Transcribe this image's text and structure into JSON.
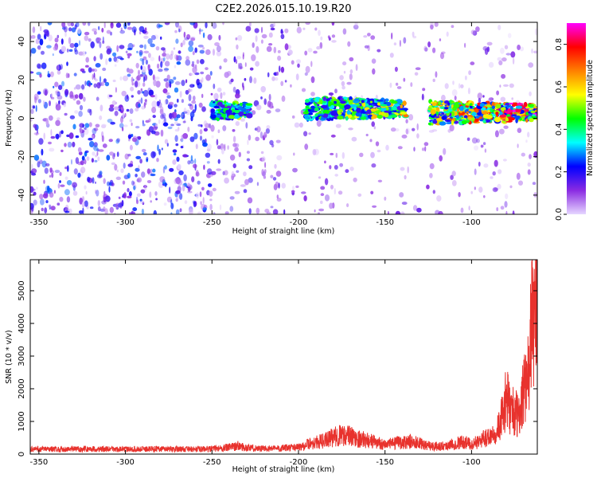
{
  "figure": {
    "title": "C2E2.2026.015.10.19.R20"
  },
  "chart_data": [
    {
      "type": "heatmap",
      "xlabel": "Height of straight line (km)",
      "ylabel": "Frequency (Hz)",
      "xlim": [
        -355,
        -62
      ],
      "ylim": [
        -50,
        50
      ],
      "x_ticks": [
        -350,
        -300,
        -250,
        -200,
        -150,
        -100
      ],
      "y_ticks": [
        40,
        20,
        0,
        -20,
        -40
      ],
      "colorbar": {
        "label": "Normalized spectral amplitude",
        "range": [
          0.0,
          0.9
        ],
        "ticks": [
          0.0,
          0.2,
          0.4,
          0.6,
          0.8
        ],
        "colormap": [
          "#e6d6ff",
          "#8a2be2",
          "#0000ff",
          "#00ffff",
          "#00ff00",
          "#ffff00",
          "#ff8000",
          "#ff0000",
          "#ff00ff"
        ]
      },
      "bands": [
        {
          "x_start": -250,
          "x_end": -228,
          "freq_center": 4,
          "freq_halfwidth": 5,
          "peak": 0.45
        },
        {
          "x_start": -196,
          "x_end": -138,
          "freq_center": 5,
          "freq_halfwidth": 6,
          "peak": 0.55
        },
        {
          "x_start": -124,
          "x_end": -62,
          "freq_center": 3,
          "freq_halfwidth": 6,
          "peak": 0.85
        }
      ],
      "background_level": [
        {
          "x_start": -355,
          "x_end": -250,
          "density": 0.9
        },
        {
          "x_start": -250,
          "x_end": -200,
          "density": 0.45
        },
        {
          "x_start": -200,
          "x_end": -62,
          "density": 0.25
        }
      ]
    },
    {
      "type": "line",
      "xlabel": "Height of straight line (km)",
      "ylabel": "SNR (10 * v/v)",
      "xlim": [
        -355,
        -62
      ],
      "ylim": [
        0,
        5950
      ],
      "x_ticks": [
        -350,
        -300,
        -250,
        -200,
        -150,
        -100
      ],
      "y_ticks": [
        0,
        1000,
        2000,
        3000,
        4000,
        5000
      ],
      "series": [
        {
          "color": "#e8322d",
          "x": [
            -355,
            -340,
            -320,
            -300,
            -280,
            -260,
            -250,
            -240,
            -235,
            -230,
            -220,
            -210,
            -200,
            -195,
            -190,
            -185,
            -180,
            -175,
            -170,
            -165,
            -160,
            -155,
            -150,
            -145,
            -140,
            -135,
            -130,
            -125,
            -120,
            -115,
            -110,
            -105,
            -100,
            -95,
            -90,
            -85,
            -82,
            -80,
            -78,
            -75,
            -72,
            -70,
            -68,
            -66,
            -64,
            -63
          ],
          "values": [
            180,
            175,
            185,
            170,
            190,
            175,
            190,
            240,
            300,
            230,
            200,
            210,
            250,
            350,
            420,
            480,
            600,
            700,
            650,
            550,
            500,
            420,
            350,
            380,
            420,
            450,
            380,
            300,
            280,
            300,
            380,
            450,
            350,
            480,
            650,
            900,
            1400,
            2000,
            1700,
            1500,
            1300,
            2600,
            2200,
            4000,
            5000,
            5900
          ]
        }
      ]
    }
  ]
}
